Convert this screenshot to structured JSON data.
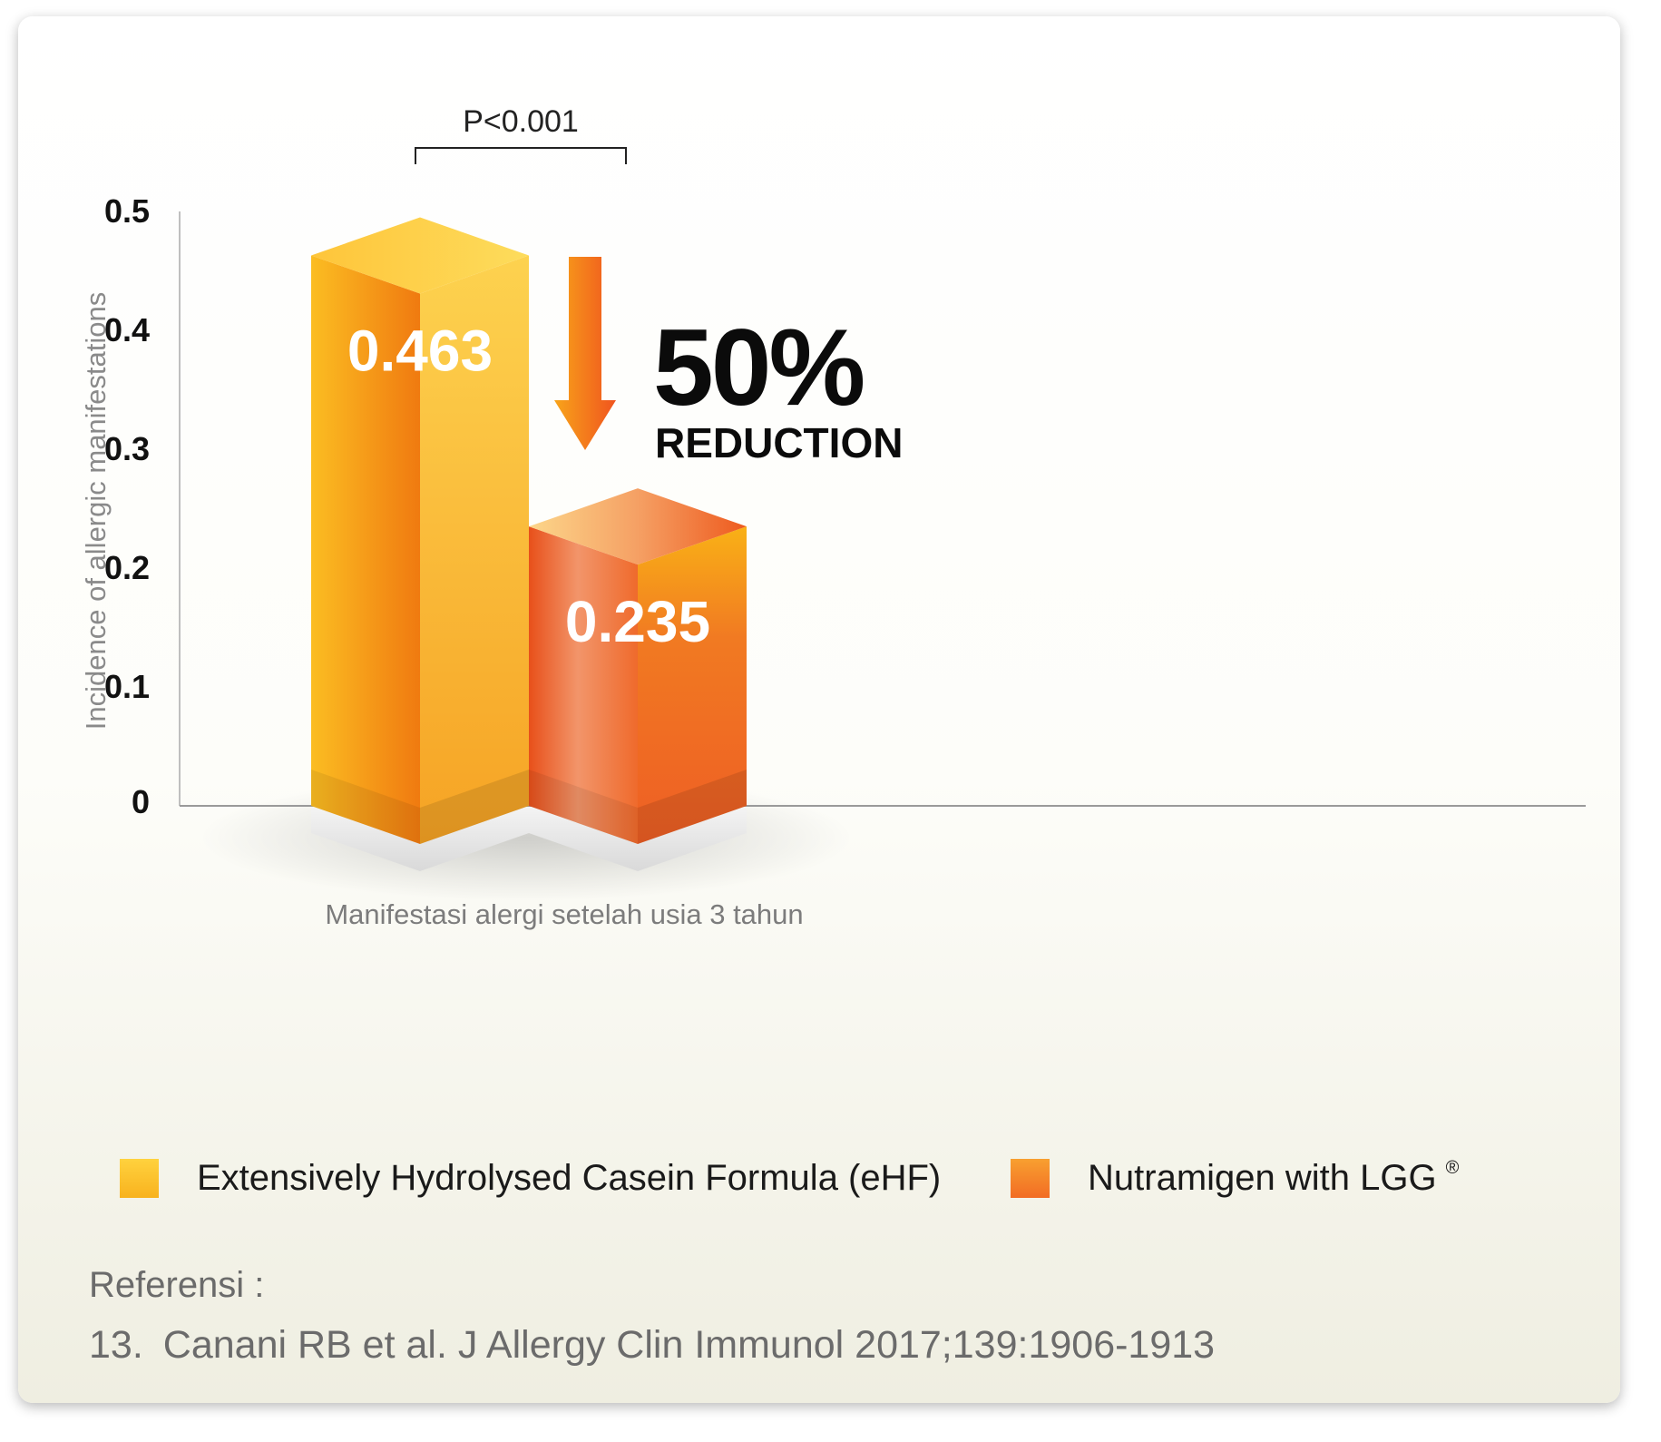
{
  "chart_data": {
    "type": "bar",
    "ylabel": "Incidence of allergic manifestations",
    "xlabel": "Manifestasi alergi setelah usia 3 tahun",
    "ylim": [
      0,
      0.5
    ],
    "yticks": [
      "0",
      "0.1",
      "0.2",
      "0.3",
      "0.4",
      "0.5"
    ],
    "categories": [
      "Manifestasi alergi setelah usia 3 tahun"
    ],
    "series": [
      {
        "name": "Extensively Hydrolysed Casein Formula (eHF)",
        "values": [
          0.463
        ],
        "label": "0.463",
        "color": "#f8b21e"
      },
      {
        "name": "Nutramigen with LGG",
        "values": [
          0.235
        ],
        "label": "0.235",
        "color": "#f26c24"
      }
    ],
    "annotations": {
      "p_value": "P<0.001",
      "reduction_percent": "50%",
      "reduction_word": "REDUCTION"
    },
    "legend_placement": "bottom",
    "grid": false
  },
  "legend": {
    "items": [
      {
        "label": "Extensively Hydrolysed Casein Formula (eHF)",
        "color_from": "#ffd23e",
        "color_to": "#f8b21e"
      },
      {
        "label": "Nutramigen with LGG",
        "superscript": "®",
        "color_from": "#f8a030",
        "color_to": "#f26c24"
      }
    ]
  },
  "reference": {
    "heading": "Referensi :",
    "number": "13.",
    "text": "Canani RB et al. J Allergy Clin Immunol 2017;139:1906-1913"
  }
}
